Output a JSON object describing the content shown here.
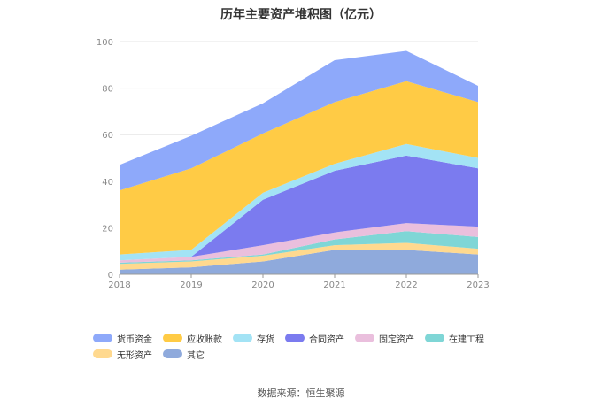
{
  "chart_data": {
    "type": "area",
    "stacked": true,
    "title": "历年主要资产堆积图（亿元）",
    "x": [
      "2018",
      "2019",
      "2020",
      "2021",
      "2022",
      "2023"
    ],
    "ylim": [
      0,
      100
    ],
    "yticks": [
      "0",
      "20",
      "40",
      "60",
      "80",
      "100"
    ],
    "grid": true,
    "legend_position": "bottom",
    "series": [
      {
        "name": "其它",
        "color": "#8faadc",
        "values": [
          2,
          3,
          5.5,
          10.5,
          10.5,
          8.5
        ]
      },
      {
        "name": "无形资产",
        "color": "#ffd98f",
        "values": [
          2.5,
          2.5,
          2.5,
          2,
          3,
          2.5
        ]
      },
      {
        "name": "在建工程",
        "color": "#7fd6d6",
        "values": [
          0.5,
          0.5,
          0.5,
          2.5,
          5,
          5
        ]
      },
      {
        "name": "固定资产",
        "color": "#eabfdd",
        "values": [
          1,
          1.5,
          4,
          3,
          3.5,
          4.5
        ]
      },
      {
        "name": "合同资产",
        "color": "#7b7bef",
        "values": [
          0,
          0,
          19.5,
          26.5,
          29,
          25
        ]
      },
      {
        "name": "存货",
        "color": "#a3e3f5",
        "values": [
          2.5,
          3,
          3,
          3,
          5,
          4.5
        ]
      },
      {
        "name": "应收账款",
        "color": "#ffcb45",
        "values": [
          27.5,
          35,
          25.5,
          26.5,
          27,
          24
        ]
      },
      {
        "name": "货币资金",
        "color": "#8ea9fa",
        "values": [
          11,
          14,
          13,
          18,
          13,
          7
        ]
      }
    ]
  },
  "legend_order": [
    "货币资金",
    "应收账款",
    "存货",
    "合同资产",
    "固定资产",
    "在建工程",
    "无形资产",
    "其它"
  ],
  "source_text": "数据来源：恒生聚源"
}
